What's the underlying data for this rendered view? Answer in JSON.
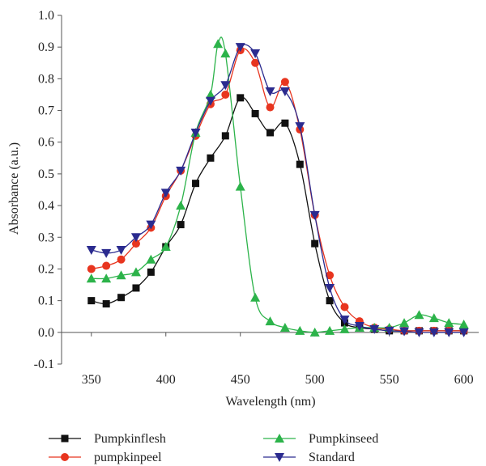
{
  "chart_data": {
    "type": "line",
    "xlabel": "Wavelength (nm)",
    "ylabel": "Absorbance (a.u.)",
    "xlim": [
      330,
      610
    ],
    "ylim": [
      -0.1,
      1.0
    ],
    "x_ticks": [
      350,
      400,
      450,
      500,
      550,
      600
    ],
    "y_ticks": [
      -0.1,
      0.0,
      0.1,
      0.2,
      0.3,
      0.4,
      0.5,
      0.6,
      0.7,
      0.8,
      0.9,
      1.0
    ],
    "y_tick_labels": [
      "-0.1",
      "0.0",
      "0.1",
      "0.2",
      "0.3",
      "0.4",
      "0.5",
      "0.6",
      "0.7",
      "0.8",
      "0.9",
      "1.0"
    ],
    "grid": false,
    "legend_position": "bottom",
    "series": [
      {
        "name": "Pumpkinflesh",
        "color": "#111111",
        "marker": "square",
        "x": [
          350,
          360,
          370,
          380,
          390,
          400,
          410,
          420,
          430,
          440,
          450,
          460,
          470,
          480,
          490,
          500,
          510,
          520,
          530,
          540,
          550,
          560,
          570,
          580,
          590,
          600
        ],
        "y": [
          0.1,
          0.09,
          0.11,
          0.14,
          0.19,
          0.27,
          0.34,
          0.47,
          0.55,
          0.62,
          0.74,
          0.69,
          0.63,
          0.66,
          0.53,
          0.28,
          0.1,
          0.03,
          0.015,
          0.01,
          0.005,
          0.005,
          0.005,
          0.005,
          0.005,
          0.005
        ]
      },
      {
        "name": "pumpkinpeel",
        "color": "#e8351f",
        "marker": "circle",
        "x": [
          350,
          360,
          370,
          380,
          390,
          400,
          410,
          420,
          430,
          440,
          450,
          460,
          470,
          480,
          490,
          500,
          510,
          520,
          530,
          540,
          550,
          560,
          570,
          580,
          590,
          600
        ],
        "y": [
          0.2,
          0.21,
          0.23,
          0.28,
          0.33,
          0.43,
          0.51,
          0.62,
          0.72,
          0.75,
          0.89,
          0.85,
          0.71,
          0.79,
          0.64,
          0.37,
          0.18,
          0.08,
          0.035,
          0.015,
          0.01,
          0.005,
          0.005,
          0.005,
          0.005,
          0.005
        ]
      },
      {
        "name": "Pumpkinseed",
        "color": "#2cb34a",
        "marker": "triangle-up",
        "x": [
          350,
          360,
          370,
          380,
          390,
          400,
          410,
          420,
          430,
          435,
          440,
          450,
          460,
          470,
          480,
          490,
          500,
          510,
          520,
          530,
          540,
          550,
          560,
          570,
          580,
          590,
          600
        ],
        "y": [
          0.17,
          0.17,
          0.18,
          0.19,
          0.23,
          0.27,
          0.4,
          0.63,
          0.75,
          0.91,
          0.88,
          0.46,
          0.11,
          0.035,
          0.015,
          0.005,
          0.0,
          0.005,
          0.01,
          0.015,
          0.015,
          0.015,
          0.03,
          0.055,
          0.045,
          0.03,
          0.025
        ]
      },
      {
        "name": "Standard",
        "color": "#2b2b8f",
        "marker": "triangle-down",
        "x": [
          350,
          360,
          370,
          380,
          390,
          400,
          410,
          420,
          430,
          440,
          450,
          460,
          470,
          480,
          490,
          500,
          510,
          520,
          530,
          540,
          550,
          560,
          570,
          580,
          590,
          600
        ],
        "y": [
          0.26,
          0.25,
          0.26,
          0.3,
          0.34,
          0.44,
          0.51,
          0.63,
          0.73,
          0.78,
          0.9,
          0.88,
          0.76,
          0.76,
          0.65,
          0.37,
          0.14,
          0.04,
          0.02,
          0.01,
          0.005,
          0.003,
          0.0,
          0.0,
          0.0,
          0.0
        ]
      }
    ]
  }
}
